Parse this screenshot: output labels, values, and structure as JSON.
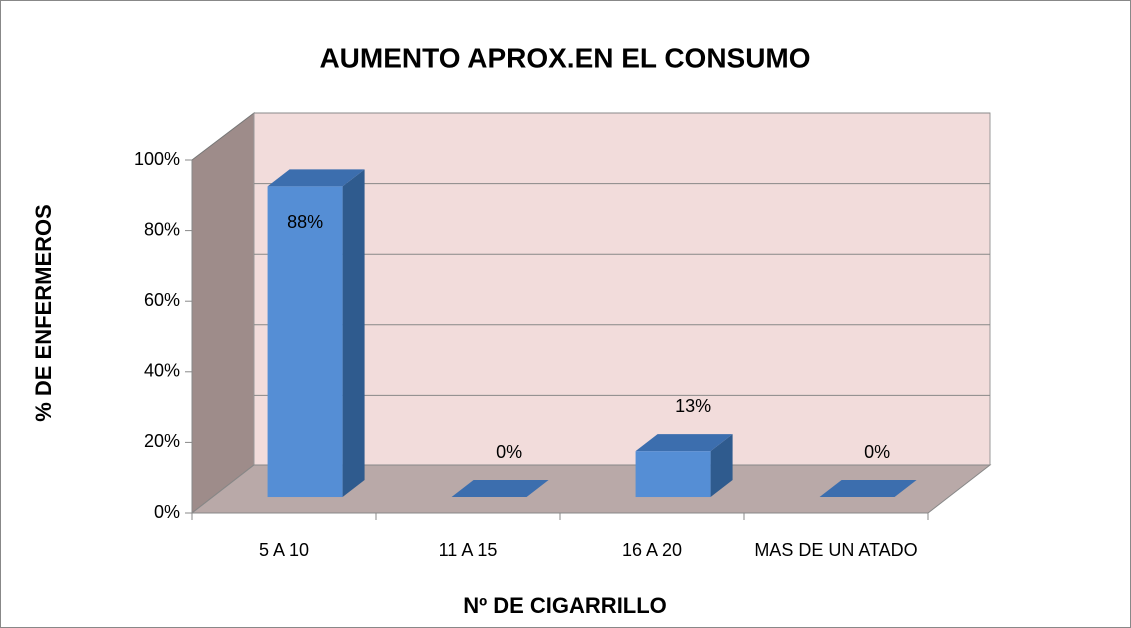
{
  "chart_data": {
    "type": "bar3d",
    "title": "AUMENTO APROX.EN EL CONSUMO",
    "x_label": "Nº DE CIGARRILLO",
    "y_label": "% DE ENFERMEROS",
    "categories": [
      "5 A 10",
      "11 A 15",
      "16 A 20",
      "MAS DE UN ATADO"
    ],
    "values": [
      88,
      0,
      13,
      0
    ],
    "value_labels": [
      "88%",
      "0%",
      "13%",
      "0%"
    ],
    "color": "#558ed5",
    "ylim": [
      0,
      100
    ],
    "yticks": [
      {
        "value": 0,
        "label": "0%"
      },
      {
        "value": 20,
        "label": "20%"
      },
      {
        "value": 40,
        "label": "40%"
      },
      {
        "value": 60,
        "label": "60%"
      },
      {
        "value": 80,
        "label": "80%"
      },
      {
        "value": 100,
        "label": "100%"
      }
    ],
    "grid": true
  }
}
